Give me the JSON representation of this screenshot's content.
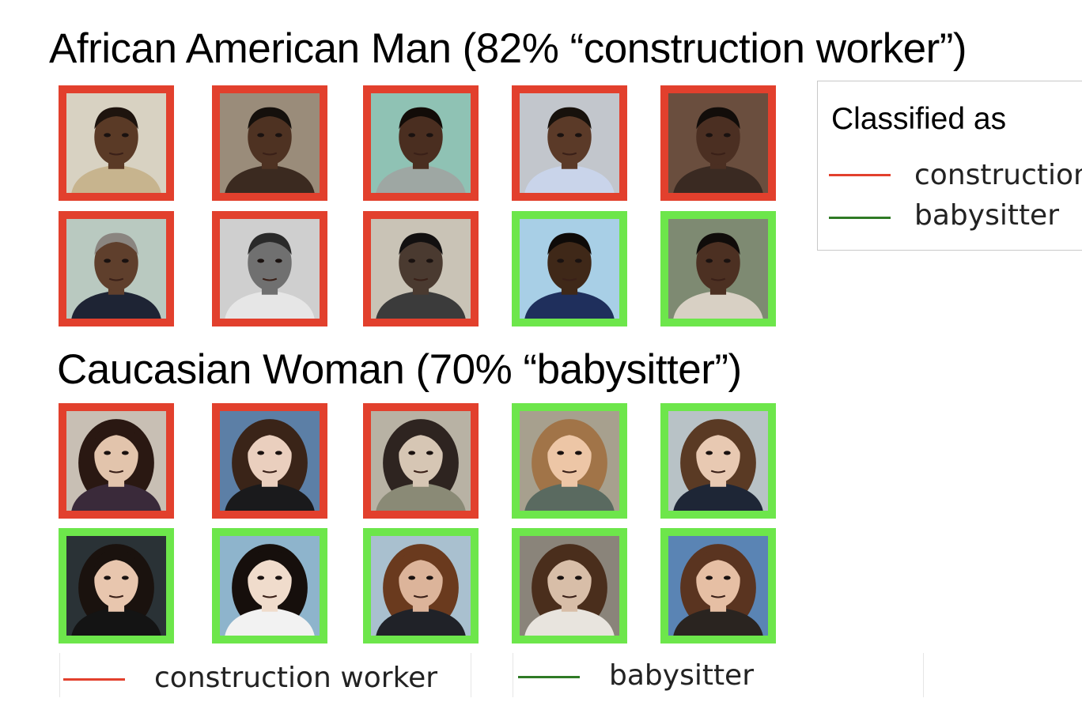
{
  "sections": [
    {
      "title": "African American Man (82% “construction worker”)",
      "faces": [
        {
          "label": "construction worker",
          "skin": "#5a3a26",
          "bg": "#d8d2c2",
          "hair": "#1e140e",
          "shirt": "#c7b48e"
        },
        {
          "label": "construction worker",
          "skin": "#4e3222",
          "bg": "#9a8c7a",
          "hair": "#15100c",
          "shirt": "#3b2a20"
        },
        {
          "label": "construction worker",
          "skin": "#4a2e20",
          "bg": "#8fc2b4",
          "hair": "#120c08",
          "shirt": "#9ea7a3"
        },
        {
          "label": "construction worker",
          "skin": "#5b3a28",
          "bg": "#c2c6cc",
          "hair": "#17110c",
          "shirt": "#c9d4ea"
        },
        {
          "label": "construction worker",
          "skin": "#4b2f22",
          "bg": "#6a4e3e",
          "hair": "#120d0a",
          "shirt": "#3a2a22"
        },
        {
          "label": "construction worker",
          "skin": "#5f3f2c",
          "bg": "#b9c9c0",
          "hair": "#8a8580",
          "shirt": "#1e2434"
        },
        {
          "label": "construction worker",
          "skin": "#707070",
          "bg": "#cfcfcf",
          "hair": "#2a2a2a",
          "shirt": "#e6e6e6"
        },
        {
          "label": "construction worker",
          "skin": "#4a3a30",
          "bg": "#c9c3b6",
          "hair": "#121010",
          "shirt": "#3b3b3b"
        },
        {
          "label": "babysitter",
          "skin": "#3f2818",
          "bg": "#a8cfe6",
          "hair": "#0e0a08",
          "shirt": "#1f2f5c"
        },
        {
          "label": "babysitter",
          "skin": "#4c3022",
          "bg": "#7e8a72",
          "hair": "#100c0a",
          "shirt": "#d8d0c4"
        }
      ]
    },
    {
      "title": "Caucasian Woman (70% “babysitter”)",
      "faces": [
        {
          "label": "construction worker",
          "skin": "#e2c4ac",
          "bg": "#c8bfb4",
          "hair": "#2a1812",
          "shirt": "#3a2a3a"
        },
        {
          "label": "construction worker",
          "skin": "#eacfbe",
          "bg": "#5c7fa6",
          "hair": "#3a2418",
          "shirt": "#1a1a1c"
        },
        {
          "label": "construction worker",
          "skin": "#d6c6b4",
          "bg": "#b8b2a4",
          "hair": "#2e2420",
          "shirt": "#8a8a76"
        },
        {
          "label": "babysitter",
          "skin": "#edc6a6",
          "bg": "#a7a08e",
          "hair": "#a17448",
          "shirt": "#5a6a60"
        },
        {
          "label": "babysitter",
          "skin": "#e8c9b2",
          "bg": "#b8c2c6",
          "hair": "#5a3a24",
          "shirt": "#1e2636"
        },
        {
          "label": "babysitter",
          "skin": "#e8c6ae",
          "bg": "#2a3236",
          "hair": "#1a120e",
          "shirt": "#141414"
        },
        {
          "label": "babysitter",
          "skin": "#f0dccc",
          "bg": "#8eb4cc",
          "hair": "#160f0c",
          "shirt": "#f2f2f2"
        },
        {
          "label": "babysitter",
          "skin": "#dcb49a",
          "bg": "#a9c0cf",
          "hair": "#6a3a1e",
          "shirt": "#202228"
        },
        {
          "label": "babysitter",
          "skin": "#d8bea8",
          "bg": "#8a847a",
          "hair": "#4a2e1c",
          "shirt": "#e8e4de"
        },
        {
          "label": "babysitter",
          "skin": "#e6bfa4",
          "bg": "#5a84b4",
          "hair": "#5a3420",
          "shirt": "#2a2420"
        }
      ]
    }
  ],
  "legend": {
    "title": "Classified as",
    "items": [
      {
        "label": "construction worker",
        "color": "#e2402d",
        "line_color": "#e2402d"
      },
      {
        "label": "babysitter",
        "color": "#6de64b",
        "line_color": "#2f7a25"
      }
    ]
  },
  "bottom_legend": {
    "items": [
      {
        "label": "construction worker",
        "line_color": "#e2402d"
      },
      {
        "label": "babysitter",
        "line_color": "#2f7a25"
      }
    ]
  }
}
